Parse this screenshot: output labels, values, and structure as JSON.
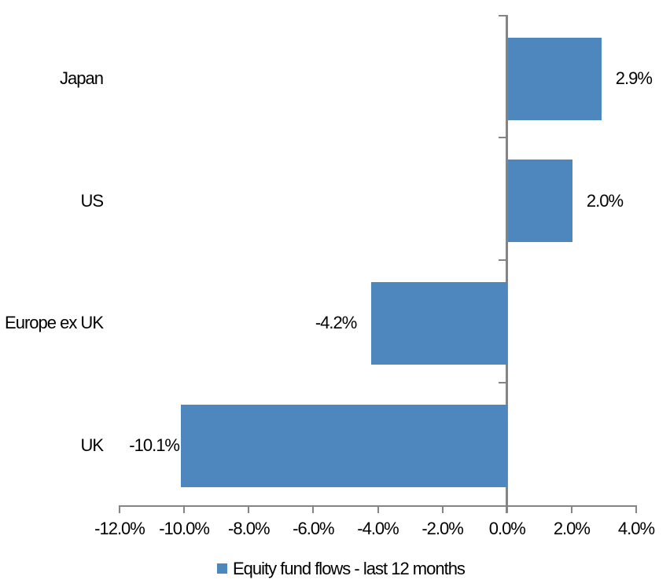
{
  "chart_data": {
    "type": "bar",
    "orientation": "horizontal",
    "title": "",
    "categories": [
      "Japan",
      "US",
      "Europe ex UK",
      "UK"
    ],
    "values": [
      2.9,
      2.0,
      -4.2,
      -10.1
    ],
    "value_labels": [
      "2.9%",
      "2.0%",
      "-4.2%",
      "-10.1%"
    ],
    "series_name": "Equity fund flows - last 12 months",
    "x_tick_labels": [
      "-12.0%",
      "-10.0%",
      "-8.0%",
      "-6.0%",
      "-4.0%",
      "-2.0%",
      "0.0%",
      "2.0%",
      "4.0%"
    ],
    "x_tick_values": [
      -12,
      -10,
      -8,
      -6,
      -4,
      -2,
      0,
      2,
      4
    ],
    "xlim": [
      -12,
      4
    ],
    "grid": false,
    "legend_position": "bottom",
    "bar_color": "#4E87BE",
    "axis_color": "#848484",
    "label_color": "#000000"
  }
}
